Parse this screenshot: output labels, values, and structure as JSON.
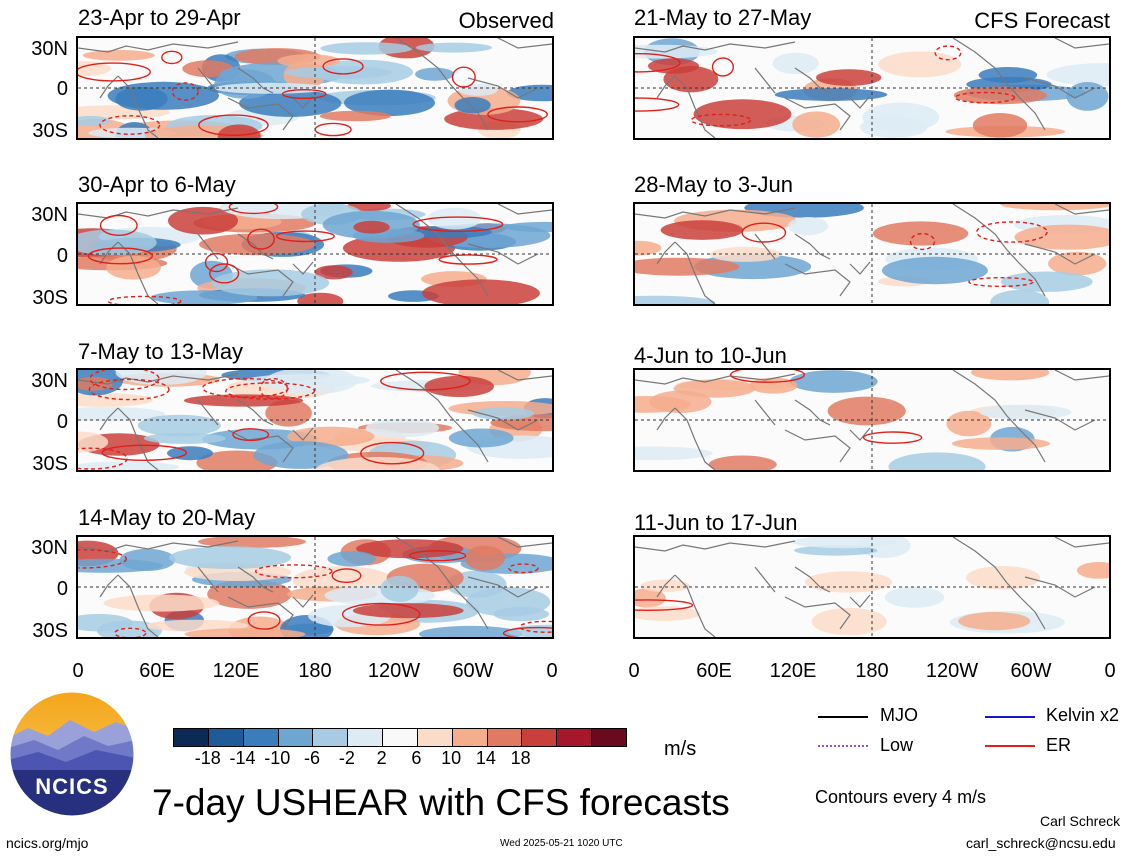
{
  "panels_left": [
    {
      "title": "23-Apr to 29-Apr",
      "tag": "Observed"
    },
    {
      "title": "30-Apr to 6-May",
      "tag": ""
    },
    {
      "title": "7-May to 13-May",
      "tag": ""
    },
    {
      "title": "14-May to 20-May",
      "tag": ""
    }
  ],
  "panels_right": [
    {
      "title": "21-May to 27-May",
      "tag": "CFS Forecast"
    },
    {
      "title": "28-May to 3-Jun",
      "tag": ""
    },
    {
      "title": "4-Jun to 10-Jun",
      "tag": ""
    },
    {
      "title": "11-Jun to 17-Jun",
      "tag": ""
    }
  ],
  "lat_labels": [
    "30N",
    "0",
    "30S"
  ],
  "lon_labels": [
    "0",
    "60E",
    "120E",
    "180",
    "120W",
    "60W",
    "0"
  ],
  "colorbar": {
    "unit": "m/s",
    "ticks": [
      "-18",
      "-14",
      "-10",
      "-6",
      "-2",
      "2",
      "6",
      "10",
      "14",
      "18"
    ],
    "colors": [
      "#0b2a55",
      "#1f5b99",
      "#3a7dbc",
      "#6ea6d2",
      "#a6cbe3",
      "#dcebf4",
      "#f9f9f9",
      "#fbdcc9",
      "#f4ad8d",
      "#e07a62",
      "#c93f3b",
      "#a5172a",
      "#6a0a1e"
    ]
  },
  "legend": {
    "items": [
      {
        "label": "MJO",
        "color": "#000000",
        "style": "solid"
      },
      {
        "label": "Kelvin x2",
        "color": "#1515d4",
        "style": "solid"
      },
      {
        "label": "Low",
        "color": "#9b4fd6",
        "style": "dotted"
      },
      {
        "label": "ER",
        "color": "#e0201b",
        "style": "solid"
      }
    ],
    "note": "Contours every 4 m/s"
  },
  "main_title": "7-day USHEAR with CFS forecasts",
  "logo_text": "NCICS",
  "footer": {
    "left": "ncics.org/mjo",
    "center": "Wed 2025-05-21 1020 UTC",
    "author": "Carl Schreck",
    "email": "carl_schreck@ncsu.edu"
  }
}
